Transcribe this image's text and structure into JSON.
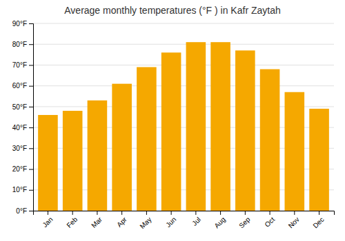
{
  "chart_data": {
    "type": "bar",
    "title": "Average monthly temperatures (°F ) in Kafr Zaytah",
    "categories": [
      "Jan",
      "Feb",
      "Mar",
      "Apr",
      "May",
      "Jun",
      "Jul",
      "Aug",
      "Sep",
      "Oct",
      "Nov",
      "Dec"
    ],
    "values": [
      46,
      48,
      53,
      61,
      69,
      76,
      81,
      81,
      77,
      68,
      57,
      49
    ],
    "color": "#F5A800",
    "ylim": [
      0,
      90
    ],
    "yticks": [
      {
        "value": 0,
        "label": "0°F"
      },
      {
        "value": 10,
        "label": "10°F"
      },
      {
        "value": 20,
        "label": "20°F"
      },
      {
        "value": 30,
        "label": "30°F"
      },
      {
        "value": 40,
        "label": "40°F"
      },
      {
        "value": 50,
        "label": "50°F"
      },
      {
        "value": 60,
        "label": "60°F"
      },
      {
        "value": 70,
        "label": "70°F"
      },
      {
        "value": 80,
        "label": "80°F"
      },
      {
        "value": 90,
        "label": "90°F"
      }
    ],
    "grid": true
  }
}
